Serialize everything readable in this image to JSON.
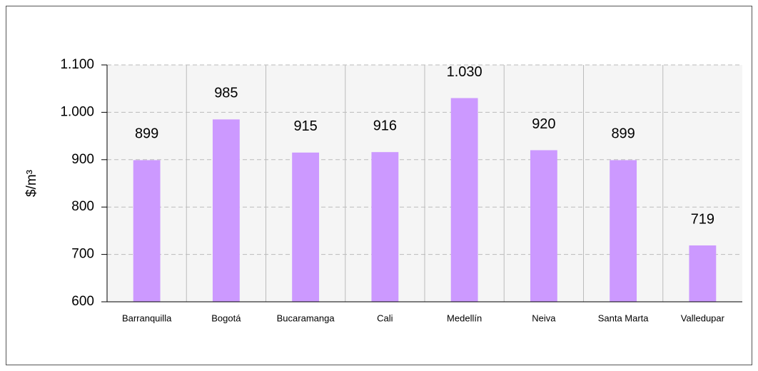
{
  "chart_data": {
    "type": "bar",
    "y_label": "$/m³",
    "categories": [
      "Barranquilla",
      "Bogotá",
      "Bucaramanga",
      "Cali",
      "Medellín",
      "Neiva",
      "Santa Marta",
      "Valledupar"
    ],
    "values": [
      899,
      985,
      915,
      916,
      1030,
      920,
      899,
      719
    ],
    "value_labels": [
      "899",
      "985",
      "915",
      "916",
      "1.030",
      "920",
      "899",
      "719"
    ],
    "color": "#cc99ff",
    "ylim": [
      600,
      1100
    ],
    "yticks": [
      600,
      700,
      800,
      900,
      {
        "value": 1000,
        "label": "1.000"
      },
      {
        "value": 1100,
        "label": "1.100"
      }
    ],
    "grid": true
  }
}
